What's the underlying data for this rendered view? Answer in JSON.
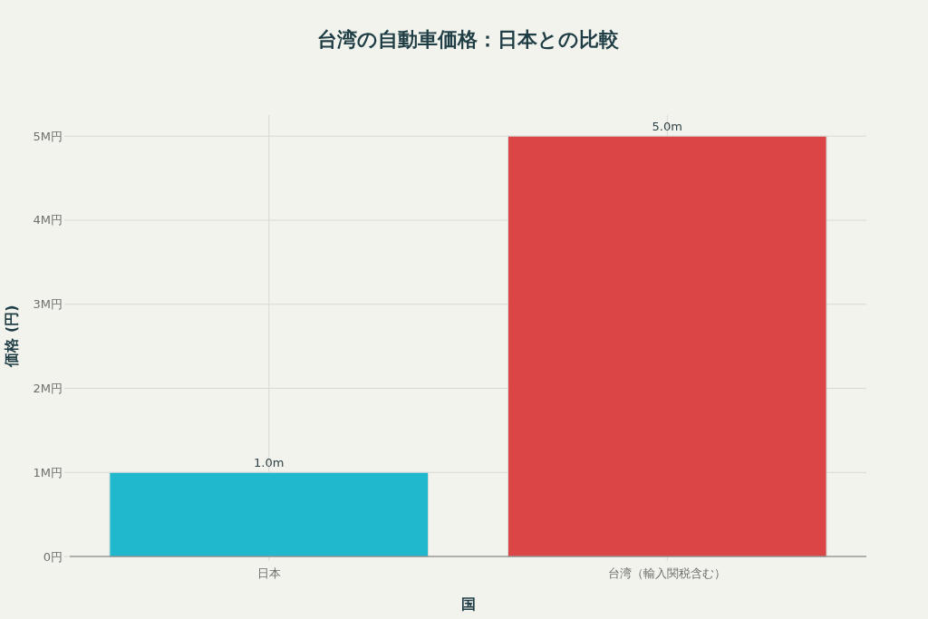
{
  "chart_data": {
    "type": "bar",
    "title": "台湾の自動車価格：日本との比較",
    "xlabel": "国",
    "ylabel": "価格 (円)",
    "categories": [
      "日本",
      "台湾（輸入関税含む）"
    ],
    "values": [
      1000000,
      5000000
    ],
    "colors": [
      "#1fb8cd",
      "#db4545"
    ],
    "value_labels": [
      "1.0m",
      "5.0m"
    ],
    "ylim": [
      0,
      5250000
    ],
    "yticks": [
      {
        "value": 0,
        "label": "0円"
      },
      {
        "value": 1000000,
        "label": "1M円"
      },
      {
        "value": 2000000,
        "label": "2M円"
      },
      {
        "value": 3000000,
        "label": "3M円"
      },
      {
        "value": 4000000,
        "label": "4M円"
      },
      {
        "value": 5000000,
        "label": "5M円"
      }
    ],
    "grid": true
  }
}
